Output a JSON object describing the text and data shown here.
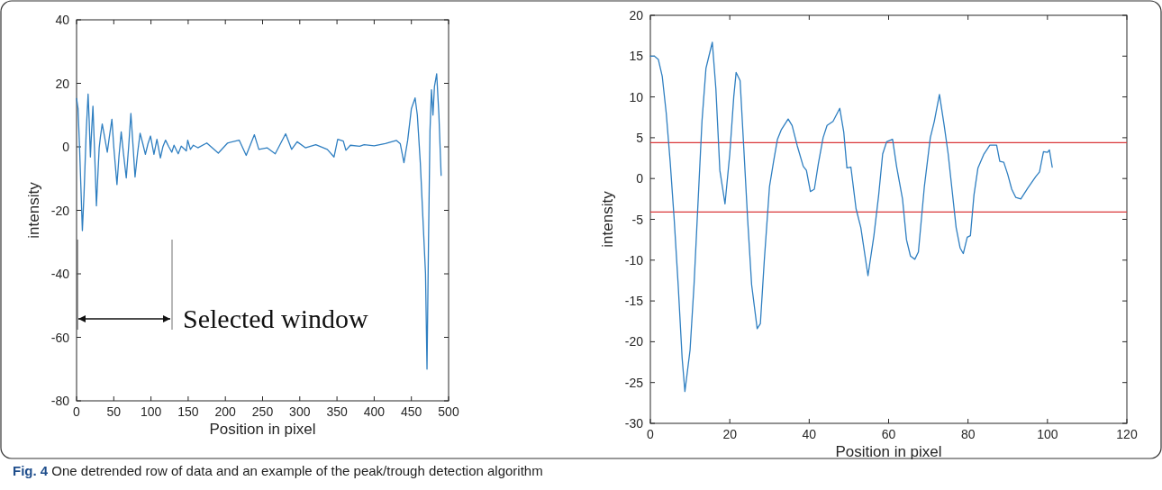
{
  "chart_data": [
    {
      "type": "line",
      "xlabel": "Position in pixel",
      "ylabel": "intensity",
      "xlim": [
        0,
        500
      ],
      "ylim": [
        -80,
        40
      ],
      "xticks": [
        0,
        50,
        100,
        150,
        200,
        250,
        300,
        350,
        400,
        450,
        500
      ],
      "yticks": [
        -80,
        -60,
        -40,
        -20,
        0,
        20,
        40
      ],
      "grid": false,
      "series": [
        {
          "color": "#2f7fc1",
          "x": [
            0,
            2,
            4,
            7.8,
            10,
            13,
            15.5,
            17,
            18.6,
            20,
            22,
            24,
            26.7,
            28,
            30.4,
            32,
            34.5,
            37,
            41.3,
            44,
            47.5,
            50,
            54.3,
            57,
            60,
            63,
            66.8,
            70,
            73,
            76,
            78.6,
            82,
            85.4,
            89,
            92.5,
            96,
            99.4,
            104,
            108,
            112.7,
            116,
            119.6,
            124,
            128,
            131,
            136.6,
            140.7,
            147.5,
            149.4,
            153,
            157,
            163,
            175,
            190.5,
            203,
            218.5,
            228,
            239,
            245,
            256,
            267,
            281,
            289,
            296.5,
            307.5,
            321.5,
            337,
            346,
            351,
            358.5,
            362,
            368,
            380.5,
            386.5,
            400,
            415,
            430,
            435,
            440,
            445,
            450,
            455,
            458,
            462,
            466,
            469,
            471,
            473,
            475,
            477,
            479,
            481,
            484,
            487,
            490
          ],
          "values": [
            15.2,
            12,
            0,
            -26.4,
            -15,
            5,
            16.6,
            8,
            -3.2,
            4,
            12.8,
            0,
            -18.6,
            -12,
            -0.3,
            3,
            7.2,
            4,
            -1.7,
            3,
            8.7,
            0,
            -11.9,
            -3,
            4.7,
            -2,
            -9.8,
            0,
            10.5,
            0,
            -9.5,
            -2,
            4.3,
            1,
            -2.4,
            1,
            3.4,
            -2.4,
            2.4,
            -3.5,
            0,
            2.1,
            0,
            -1.7,
            0.5,
            -2.2,
            0.2,
            -1.3,
            2.1,
            -0.8,
            0.5,
            -0.3,
            1.2,
            -2,
            1.2,
            2.1,
            -2.7,
            3.8,
            -0.8,
            -0.3,
            -2.2,
            4.1,
            -0.8,
            1.6,
            -0.3,
            0.7,
            -0.8,
            -3.2,
            2.4,
            1.8,
            -1.1,
            0.5,
            0.2,
            0.7,
            0.3,
            1,
            2,
            1,
            -5,
            2,
            12,
            15.4,
            10,
            -5,
            -25,
            -40,
            -70,
            -30,
            5,
            18,
            10,
            19,
            23,
            10,
            -9
          ]
        }
      ],
      "annotations": [
        "Selected window",
        "Fig. 4 One detrended row of data and an example of the peak/trough detection algorithm"
      ]
    },
    {
      "type": "line",
      "xlabel": "Position in pixel",
      "ylabel": "intensity",
      "xlim": [
        0,
        120
      ],
      "ylim": [
        -30,
        20
      ],
      "xticks": [
        0,
        20,
        40,
        60,
        80,
        100,
        120
      ],
      "yticks": [
        -30,
        -25,
        -20,
        -15,
        -10,
        -5,
        0,
        5,
        10,
        15,
        20
      ],
      "grid": false,
      "series": [
        {
          "color": "#2f7fc1",
          "x": [
            0,
            1,
            2,
            3,
            4,
            5,
            6,
            7,
            8,
            8.7,
            10,
            11,
            12,
            13,
            14,
            15,
            15.6,
            16.5,
            17.5,
            18.8,
            20,
            21,
            21.6,
            22.6,
            23.5,
            24.5,
            25.5,
            26.9,
            27.7,
            28.7,
            30,
            31,
            32,
            33,
            34.7,
            35.7,
            37,
            38.5,
            39.3,
            40.3,
            41.3,
            42.3,
            43.5,
            44.5,
            46,
            47.7,
            48.7,
            49.5,
            50.5,
            51.8,
            53,
            54.8,
            56.3,
            57.5,
            58.5,
            59.5,
            61,
            62,
            63.5,
            64.5,
            65.5,
            66.6,
            67.5,
            69,
            70.5,
            71.5,
            72.8,
            74,
            75,
            76,
            77,
            78,
            78.8,
            79.8,
            80.6,
            81.5,
            82.5,
            84,
            85.5,
            87.2,
            88,
            89,
            90,
            91,
            92,
            93.3,
            95,
            97,
            98,
            99,
            100,
            100.5,
            101.2
          ],
          "values": [
            15,
            15,
            14.6,
            12.5,
            8,
            2,
            -5,
            -13,
            -22,
            -26.1,
            -21,
            -13,
            -3,
            7,
            13.5,
            15.5,
            16.7,
            11,
            1,
            -3.1,
            3,
            10,
            13,
            12,
            4,
            -5,
            -13,
            -18.4,
            -17.8,
            -10,
            -1,
            2,
            4.8,
            6,
            7.3,
            6.5,
            4,
            1.5,
            1,
            -1.6,
            -1.3,
            1.8,
            5,
            6.5,
            7,
            8.6,
            5.7,
            1.3,
            1.4,
            -3.7,
            -6,
            -11.9,
            -7,
            -2,
            3,
            4.5,
            4.8,
            1.5,
            -2.5,
            -7.5,
            -9.5,
            -9.9,
            -9,
            -1,
            5,
            7,
            10.3,
            6.5,
            3,
            -1.5,
            -6,
            -8.5,
            -9.2,
            -7.2,
            -7,
            -2,
            1.3,
            3,
            4.1,
            4.1,
            2.1,
            2,
            0.5,
            -1.3,
            -2.3,
            -2.5,
            -1.2,
            0.2,
            0.8,
            3.3,
            3.2,
            3.5,
            1.4
          ]
        }
      ],
      "ref_lines": [
        {
          "axis": "y",
          "value": 4.4,
          "color": "#d9383a"
        },
        {
          "axis": "y",
          "value": -4.1,
          "color": "#d9383a"
        }
      ]
    }
  ]
}
